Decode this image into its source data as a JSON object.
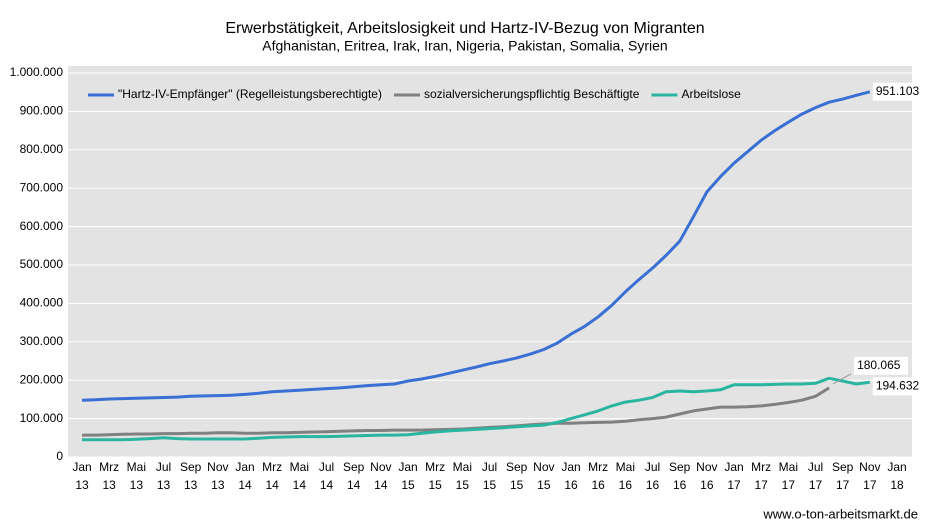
{
  "chart_data": {
    "type": "line",
    "title": "Erwerbstätigkeit, Arbeitslosigkeit und Hartz-IV-Bezug von Migranten",
    "subtitle": "Afghanistan,  Eritrea, Irak, Iran,  Nigeria, Pakistan, Somalia, Syrien",
    "source": "www.o-ton-arbeitsmarkt.de",
    "categories": [
      "Jan 13",
      null,
      "Mrz 13",
      null,
      "Mai 13",
      null,
      "Jul 13",
      null,
      "Sep 13",
      null,
      "Nov 13",
      null,
      "Jan 14",
      null,
      "Mrz 14",
      null,
      "Mai 14",
      null,
      "Jul 14",
      null,
      "Sep 14",
      null,
      "Nov 14",
      null,
      "Jan 15",
      null,
      "Mrz 15",
      null,
      "Mai 15",
      null,
      "Jul 15",
      null,
      "Sep 15",
      null,
      "Nov 15",
      null,
      "Jan 16",
      null,
      "Mrz 16",
      null,
      "Mai 16",
      null,
      "Jul 16",
      null,
      "Sep 16",
      null,
      "Nov 16",
      null,
      "Jan 17",
      null,
      "Mrz 17",
      null,
      "Mai 17",
      null,
      "Jul 17",
      null,
      "Sep 17",
      null,
      "Nov 17",
      null,
      "Jan 18"
    ],
    "series": [
      {
        "name": "\"Hartz-IV-Empfänger\" (Regelleistungsberechtigte)",
        "color": "#3a6fd4",
        "values": [
          148000,
          149000,
          151000,
          152000,
          153000,
          154000,
          155000,
          156000,
          158000,
          159000,
          160000,
          161000,
          163000,
          166000,
          170000,
          172000,
          174000,
          176000,
          178000,
          180000,
          183000,
          186000,
          188000,
          190000,
          198000,
          203000,
          210000,
          218000,
          226000,
          234000,
          243000,
          250000,
          258000,
          268000,
          280000,
          297000,
          320000,
          340000,
          365000,
          395000,
          430000,
          462000,
          492000,
          525000,
          562000,
          625000,
          690000,
          730000,
          765000,
          795000,
          825000,
          850000,
          872000,
          893000,
          910000,
          924000,
          932000,
          942000,
          951103,
          null,
          null
        ],
        "value_labels": [
          null,
          null,
          null,
          null,
          null,
          null,
          null,
          null,
          null,
          null,
          null,
          null,
          null,
          null,
          null,
          null,
          null,
          null,
          null,
          null,
          null,
          null,
          null,
          null,
          null,
          null,
          null,
          null,
          null,
          null,
          null,
          null,
          null,
          null,
          null,
          null,
          null,
          null,
          null,
          null,
          null,
          null,
          null,
          null,
          null,
          null,
          null,
          null,
          null,
          null,
          null,
          null,
          null,
          null,
          null,
          null,
          null,
          null,
          "951.103",
          null,
          null
        ]
      },
      {
        "name": "sozialversicherungspflichtig Beschäftigte",
        "color": "#808080",
        "values": [
          57000,
          57000,
          58000,
          59000,
          60000,
          60000,
          61000,
          61000,
          62000,
          62000,
          63000,
          63000,
          62000,
          62000,
          63000,
          63000,
          64000,
          65000,
          66000,
          67000,
          68000,
          69000,
          69000,
          70000,
          70000,
          70000,
          71000,
          72000,
          73000,
          75000,
          77000,
          79000,
          81000,
          84000,
          86000,
          88000,
          88000,
          89000,
          90000,
          91000,
          93000,
          97000,
          100000,
          104000,
          112000,
          120000,
          125000,
          130000,
          130000,
          131000,
          133000,
          137000,
          142000,
          148000,
          158000,
          180065,
          null,
          null,
          null,
          null,
          null
        ],
        "value_labels": [
          null,
          null,
          null,
          null,
          null,
          null,
          null,
          null,
          null,
          null,
          null,
          null,
          null,
          null,
          null,
          null,
          null,
          null,
          null,
          null,
          null,
          null,
          null,
          null,
          null,
          null,
          null,
          null,
          null,
          null,
          null,
          null,
          null,
          null,
          null,
          null,
          null,
          null,
          null,
          null,
          null,
          null,
          null,
          null,
          null,
          null,
          null,
          null,
          null,
          null,
          null,
          null,
          null,
          null,
          null,
          "180.065",
          null,
          null,
          null,
          null,
          null
        ]
      },
      {
        "name": "Arbeitslose",
        "color": "#2ab5a0",
        "values": [
          45000,
          45000,
          45000,
          45000,
          46000,
          48000,
          50000,
          48000,
          47000,
          47000,
          47000,
          47000,
          47000,
          49000,
          51000,
          52000,
          53000,
          53000,
          53000,
          54000,
          55000,
          56000,
          57000,
          57000,
          58000,
          62000,
          65000,
          68000,
          70000,
          72000,
          74000,
          76000,
          79000,
          81000,
          83000,
          90000,
          100000,
          110000,
          120000,
          133000,
          143000,
          148000,
          155000,
          170000,
          172000,
          170000,
          172000,
          175000,
          188000,
          188000,
          188000,
          189000,
          190000,
          190000,
          192000,
          205000,
          198000,
          190000,
          194632,
          null,
          null
        ],
        "value_labels": [
          null,
          null,
          null,
          null,
          null,
          null,
          null,
          null,
          null,
          null,
          null,
          null,
          null,
          null,
          null,
          null,
          null,
          null,
          null,
          null,
          null,
          null,
          null,
          null,
          null,
          null,
          null,
          null,
          null,
          null,
          null,
          null,
          null,
          null,
          null,
          null,
          null,
          null,
          null,
          null,
          null,
          null,
          null,
          null,
          null,
          null,
          null,
          null,
          null,
          null,
          null,
          null,
          null,
          null,
          null,
          null,
          null,
          null,
          "194.632",
          null,
          null
        ]
      }
    ],
    "ylim": [
      0,
      1000000
    ],
    "yticks": [
      0,
      {
        "value": 100000,
        "label": "100.000"
      },
      {
        "value": 200000,
        "label": "200.000"
      },
      {
        "value": 300000,
        "label": "300.000"
      },
      {
        "value": 400000,
        "label": "400.000"
      },
      {
        "value": 500000,
        "label": "500.000"
      },
      {
        "value": 600000,
        "label": "600.000"
      },
      {
        "value": 700000,
        "label": "700.000"
      },
      {
        "value": 800000,
        "label": "800.000"
      },
      {
        "value": 900000,
        "label": "900.000"
      },
      {
        "value": 1000000,
        "label": "1.000.000"
      }
    ],
    "grid": true,
    "legend": "top"
  }
}
